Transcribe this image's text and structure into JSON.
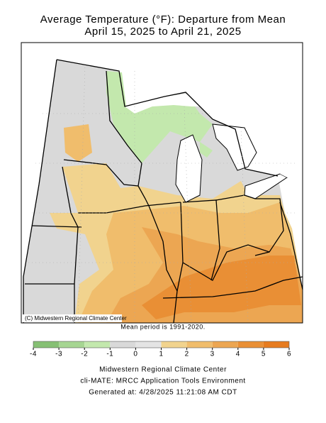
{
  "title": [
    "Average Temperature (°F): Departure from Mean",
    "April 15, 2025 to April 21, 2025"
  ],
  "map": {
    "credit": "(C) Midwestern Regional Climate Center"
  },
  "note": "Mean period is 1991-2020.",
  "legend": {
    "ticks": [
      -4,
      -3,
      -2,
      -1,
      0,
      1,
      2,
      3,
      4,
      5,
      6
    ],
    "colors": [
      "#86c074",
      "#a6d592",
      "#c3e8ad",
      "#d9d9d9",
      "#e4e4e4",
      "#f1d38e",
      "#f0bd6c",
      "#eca652",
      "#e98f35",
      "#e67b1f"
    ]
  },
  "footer": [
    "Midwestern Regional Climate Center",
    "cli-MATE: MRCC Application Tools Environment",
    "Generated at: 4/28/2025 11:21:08 AM CDT"
  ]
}
